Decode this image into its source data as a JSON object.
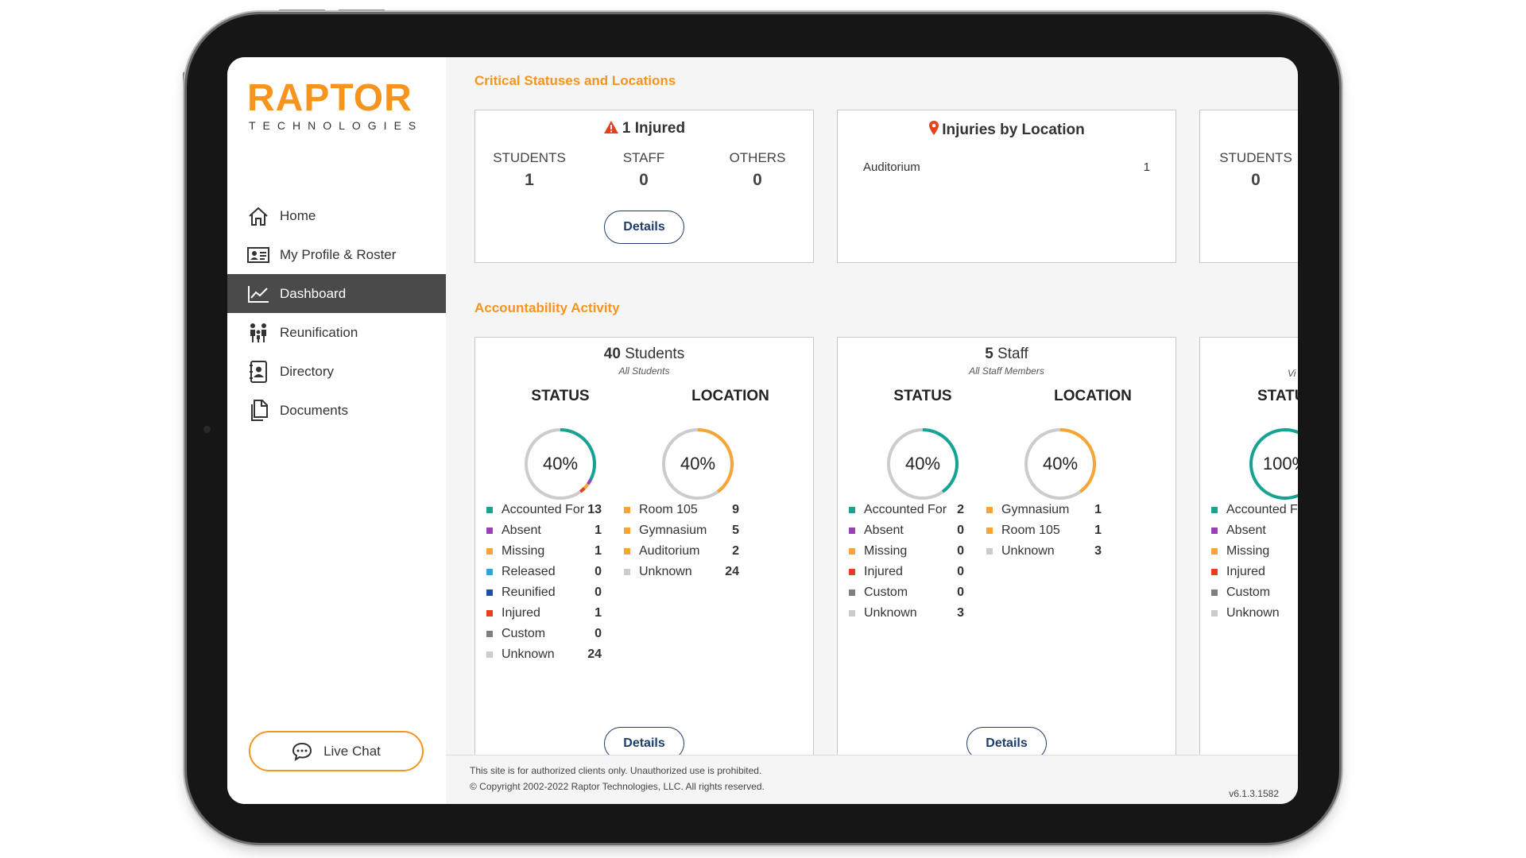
{
  "sidebar": {
    "logo_main": "RAPTOR",
    "logo_sub": "TECHNOLOGIES",
    "items": [
      {
        "label": "Home",
        "icon": "home-icon"
      },
      {
        "label": "My Profile & Roster",
        "icon": "profile-card-icon"
      },
      {
        "label": "Dashboard",
        "icon": "chart-line-icon",
        "active": true
      },
      {
        "label": "Reunification",
        "icon": "family-icon"
      },
      {
        "label": "Directory",
        "icon": "contact-book-icon"
      },
      {
        "label": "Documents",
        "icon": "documents-icon"
      }
    ],
    "live_chat_label": "Live Chat"
  },
  "critical": {
    "section_title": "Critical Statuses and Locations",
    "injured_card": {
      "title": "1 Injured",
      "cols": [
        {
          "label": "STUDENTS",
          "value": "1"
        },
        {
          "label": "STAFF",
          "value": "0"
        },
        {
          "label": "OTHERS",
          "value": "0"
        }
      ],
      "details_label": "Details"
    },
    "location_card": {
      "title": "Injuries by Location",
      "rows": [
        {
          "name": "Auditorium",
          "value": "1"
        }
      ]
    },
    "partial_card": {
      "label": "STUDENTS",
      "value": "0"
    }
  },
  "accountability": {
    "section_title": "Accountability Activity",
    "students_card": {
      "count": "40",
      "title_suffix": " Students",
      "subtitle": "All Students",
      "status_head": "STATUS",
      "location_head": "LOCATION",
      "status_pct": "40%",
      "location_pct": "40%",
      "status_rows": [
        {
          "name": "Accounted For",
          "value": "13",
          "color": "#16a394"
        },
        {
          "name": "Absent",
          "value": "1",
          "color": "#9b3fb5"
        },
        {
          "name": "Missing",
          "value": "1",
          "color": "#f7a534"
        },
        {
          "name": "Released",
          "value": "0",
          "color": "#29a8e0"
        },
        {
          "name": "Reunified",
          "value": "0",
          "color": "#1f4ea3"
        },
        {
          "name": "Injured",
          "value": "1",
          "color": "#e8401c"
        },
        {
          "name": "Custom",
          "value": "0",
          "color": "#7f7f7f"
        },
        {
          "name": "Unknown",
          "value": "24",
          "color": "#cccccc"
        }
      ],
      "location_rows": [
        {
          "name": "Room 105",
          "value": "9",
          "color": "#f7a534"
        },
        {
          "name": "Gymnasium",
          "value": "5",
          "color": "#f7a534"
        },
        {
          "name": "Auditorium",
          "value": "2",
          "color": "#f7a534"
        },
        {
          "name": "Unknown",
          "value": "24",
          "color": "#cccccc"
        }
      ],
      "details_label": "Details"
    },
    "staff_card": {
      "count": "5",
      "title_suffix": " Staff",
      "subtitle": "All Staff Members",
      "status_head": "STATUS",
      "location_head": "LOCATION",
      "status_pct": "40%",
      "location_pct": "40%",
      "status_rows": [
        {
          "name": "Accounted For",
          "value": "2",
          "color": "#16a394"
        },
        {
          "name": "Absent",
          "value": "0",
          "color": "#9b3fb5"
        },
        {
          "name": "Missing",
          "value": "0",
          "color": "#f7a534"
        },
        {
          "name": "Injured",
          "value": "0",
          "color": "#e8401c"
        },
        {
          "name": "Custom",
          "value": "0",
          "color": "#7f7f7f"
        },
        {
          "name": "Unknown",
          "value": "3",
          "color": "#cccccc"
        }
      ],
      "location_rows": [
        {
          "name": "Gymnasium",
          "value": "1",
          "color": "#f7a534"
        },
        {
          "name": "Room 105",
          "value": "1",
          "color": "#f7a534"
        },
        {
          "name": "Unknown",
          "value": "3",
          "color": "#cccccc"
        }
      ],
      "details_label": "Details"
    },
    "partial_card": {
      "subtitle_fragment": "Vi",
      "status_head_fragment": "STATU",
      "pct_fragment": "100%",
      "rows": [
        {
          "name": "Accounted For",
          "color": "#16a394"
        },
        {
          "name": "Absent",
          "color": "#9b3fb5"
        },
        {
          "name": "Missing",
          "color": "#f7a534"
        },
        {
          "name": "Injured",
          "color": "#e8401c"
        },
        {
          "name": "Custom",
          "color": "#7f7f7f"
        },
        {
          "name": "Unknown",
          "color": "#cccccc"
        }
      ]
    }
  },
  "footer": {
    "line1": "This site is for authorized clients only. Unauthorized use is prohibited.",
    "line2": "© Copyright 2002-2022 Raptor Technologies, LLC. All rights reserved.",
    "version": "v6.1.3.1582"
  },
  "colors": {
    "brand": "#f7941d",
    "accent_navy": "#1f3d6b",
    "teal": "#16a394",
    "orange": "#f7a534",
    "ring_bg": "#cccccc"
  }
}
